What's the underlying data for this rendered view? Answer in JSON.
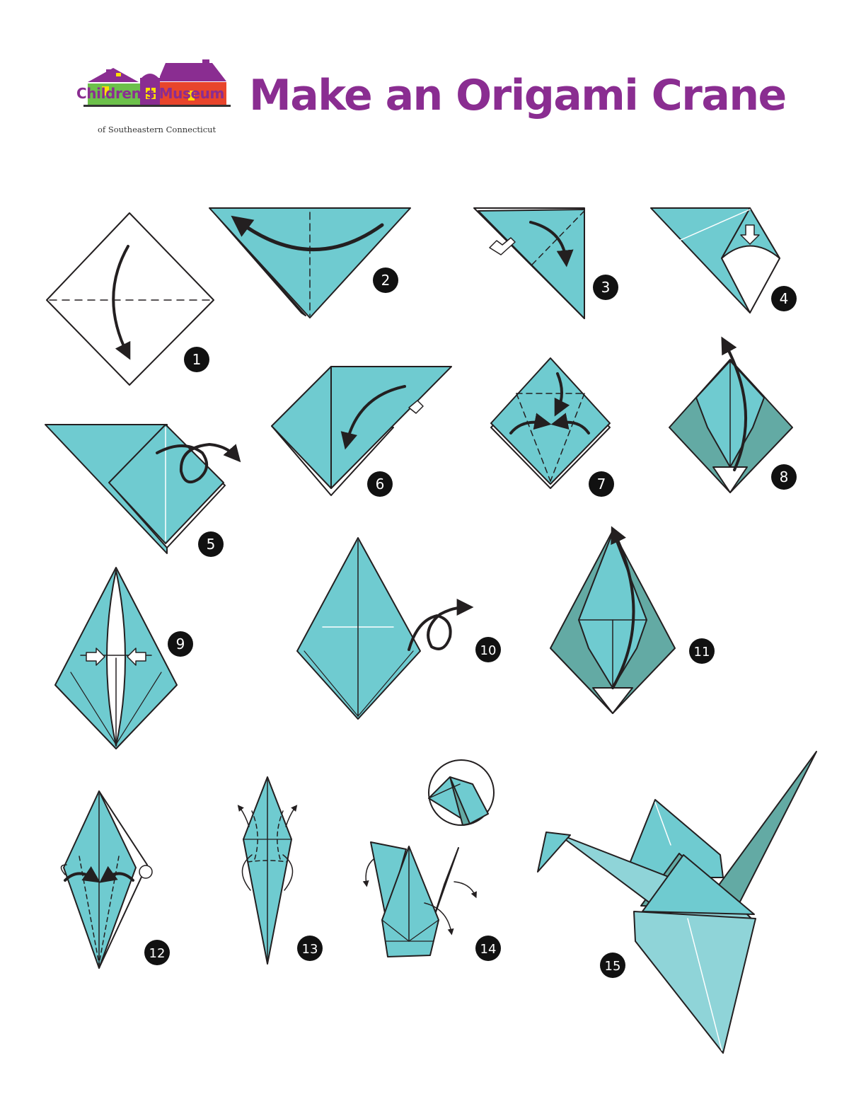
{
  "header": {
    "logo_name": "Children’s Museum",
    "logo_subtitle": "of Southeastern Connecticut",
    "title": "Make an Origami Crane"
  },
  "steps": [
    "1",
    "2",
    "3",
    "4",
    "5",
    "6",
    "7",
    "8",
    "9",
    "10",
    "11",
    "12",
    "13",
    "14",
    "15"
  ],
  "colors": {
    "teal": "#6fcbd0",
    "teal_dark": "#63aaa4",
    "teal_pale": "#8fd4d8",
    "purple": "#8a2d91",
    "green": "#6cc04a",
    "orange": "#e8452c",
    "yellow": "#ffe000",
    "stroke": "#231f20"
  },
  "icons": [
    "house-logo-icon",
    "fold-arrow-icon",
    "push-arrow-icon",
    "flip-over-icon"
  ]
}
